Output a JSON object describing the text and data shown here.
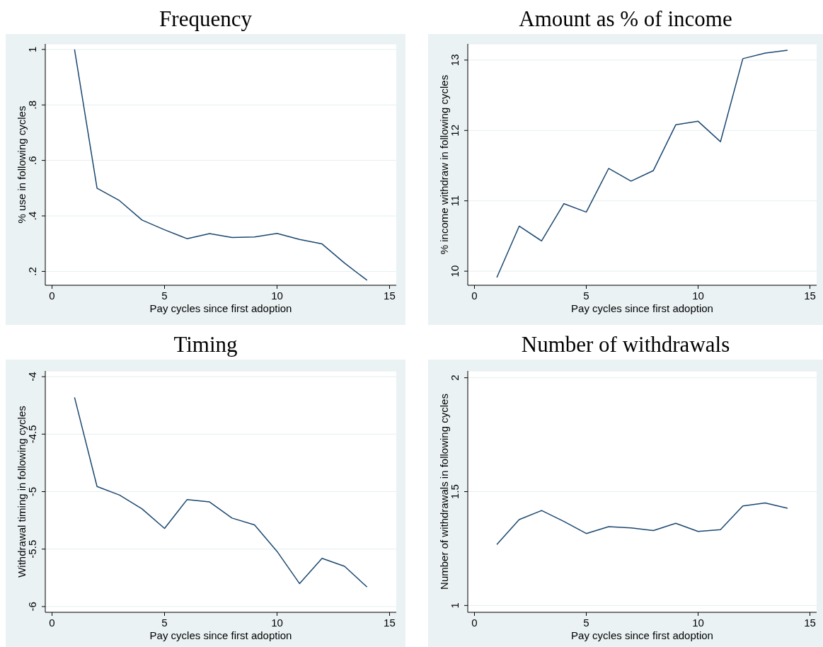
{
  "chart_data": [
    {
      "type": "line",
      "title": "Frequency",
      "xlabel": "Pay cycles since first adoption",
      "ylabel": "% use in following cycles",
      "x": [
        1,
        2,
        3,
        4,
        5,
        6,
        7,
        8,
        9,
        10,
        11,
        12,
        13,
        14
      ],
      "values": [
        1.0,
        0.5,
        0.455,
        0.385,
        0.35,
        0.318,
        0.336,
        0.322,
        0.324,
        0.337,
        0.315,
        0.299,
        0.23,
        0.168
      ],
      "color": "#1a476f",
      "xlim": [
        -0.3,
        15.3
      ],
      "ylim": [
        0.15,
        1.02
      ],
      "xticks": [
        0,
        5,
        10,
        15
      ],
      "yticks": [
        {
          "value": 0.2,
          "label": ".2"
        },
        {
          "value": 0.4,
          "label": ".4"
        },
        {
          "value": 0.6,
          "label": ".6"
        },
        {
          "value": 0.8,
          "label": ".8"
        },
        1
      ],
      "grid": "y"
    },
    {
      "type": "line",
      "title": "Amount as % of income",
      "xlabel": "Pay cycles since first adoption",
      "ylabel": "% income withdraw in following cycles",
      "x": [
        1,
        2,
        3,
        4,
        5,
        6,
        7,
        8,
        9,
        10,
        11,
        12,
        13,
        14
      ],
      "values": [
        9.91,
        10.64,
        10.43,
        10.96,
        10.84,
        11.46,
        11.28,
        11.43,
        12.08,
        12.13,
        11.84,
        13.02,
        13.1,
        13.14
      ],
      "color": "#1a476f",
      "xlim": [
        -0.3,
        15.3
      ],
      "ylim": [
        9.8,
        13.23
      ],
      "xticks": [
        0,
        5,
        10,
        15
      ],
      "yticks": [
        10,
        11,
        12,
        13
      ],
      "grid": "y"
    },
    {
      "type": "line",
      "title": "Timing",
      "xlabel": "Pay cycles since first adoption",
      "ylabel": "Withdrawal timing in following cycles",
      "x": [
        1,
        2,
        3,
        4,
        5,
        6,
        7,
        8,
        9,
        10,
        11,
        12,
        13,
        14
      ],
      "values": [
        -4.18,
        -4.955,
        -5.03,
        -5.15,
        -5.32,
        -5.07,
        -5.09,
        -5.23,
        -5.29,
        -5.52,
        -5.8,
        -5.58,
        -5.65,
        -5.83
      ],
      "color": "#1a476f",
      "xlim": [
        -0.3,
        15.3
      ],
      "ylim": [
        -6.05,
        -3.95
      ],
      "xticks": [
        0,
        5,
        10,
        15
      ],
      "yticks": [
        -6,
        -5.5,
        -5,
        -4.5,
        -4
      ],
      "grid": "y"
    },
    {
      "type": "line",
      "title": "Number of withdrawals",
      "xlabel": "Pay cycles since first adoption",
      "ylabel": "Number of withdrawals in following cycles",
      "x": [
        1,
        2,
        3,
        4,
        5,
        6,
        7,
        8,
        9,
        10,
        11,
        12,
        13,
        14
      ],
      "values": [
        1.268,
        1.377,
        1.417,
        1.369,
        1.316,
        1.346,
        1.341,
        1.329,
        1.361,
        1.325,
        1.333,
        1.437,
        1.45,
        1.427
      ],
      "color": "#1a476f",
      "xlim": [
        -0.3,
        15.3
      ],
      "ylim": [
        0.97,
        2.03
      ],
      "xticks": [
        0,
        5,
        10,
        15
      ],
      "yticks": [
        1,
        1.5,
        2
      ],
      "grid": "y"
    }
  ]
}
